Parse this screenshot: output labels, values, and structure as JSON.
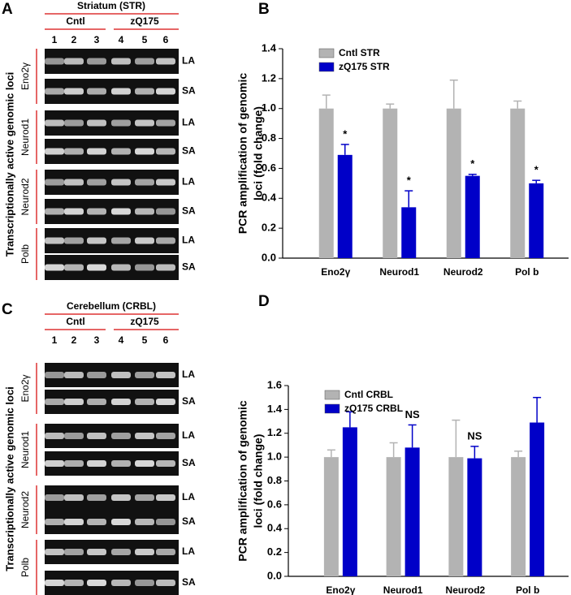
{
  "gels": [
    {
      "letter": "A",
      "title": "Striatum (STR)",
      "groups": [
        "Cntl",
        "zQ175"
      ],
      "lanes": [
        "1",
        "2",
        "3",
        "4",
        "5",
        "6"
      ],
      "side_label": "Transcriptionally active genomic loci",
      "genes": [
        {
          "name": "Eno2γ",
          "rows": [
            "LA",
            "SA"
          ]
        },
        {
          "name": "Neurod1",
          "rows": [
            "LA",
            "SA"
          ]
        },
        {
          "name": "Neurod2",
          "rows": [
            "LA",
            "SA"
          ]
        },
        {
          "name": "Polb",
          "rows": [
            "LA",
            "SA"
          ]
        }
      ]
    },
    {
      "letter": "C",
      "title": "Cerebellum (CRBL)",
      "groups": [
        "Cntl",
        "zQ175"
      ],
      "lanes": [
        "1",
        "2",
        "3",
        "4",
        "5",
        "6"
      ],
      "side_label": "Transcriptionally active genomic loci",
      "genes": [
        {
          "name": "Eno2γ",
          "rows": [
            "LA",
            "SA"
          ]
        },
        {
          "name": "Neurod1",
          "rows": [
            "LA",
            "SA"
          ]
        },
        {
          "name": "Neurod2",
          "rows": [
            "LA",
            "SA"
          ]
        },
        {
          "name": "Polb",
          "rows": [
            "LA",
            "SA"
          ]
        }
      ]
    }
  ],
  "chart_data": [
    {
      "type": "bar",
      "letter": "B",
      "ylabel": [
        "PCR amplification of genomic",
        "loci (fold change)"
      ],
      "categories": [
        "Eno2γ",
        "Neurod1",
        "Neurod2",
        "Pol b"
      ],
      "series": [
        {
          "name": "Cntl STR",
          "color": "#b3b3b3",
          "values": [
            1.0,
            1.0,
            1.0,
            1.0
          ],
          "errors": [
            0.09,
            0.03,
            0.19,
            0.05
          ]
        },
        {
          "name": "zQ175 STR",
          "color": "#0000c8",
          "values": [
            0.69,
            0.34,
            0.55,
            0.5
          ],
          "errors": [
            0.07,
            0.11,
            0.01,
            0.02
          ]
        }
      ],
      "annotations": [
        "*",
        "*",
        "*",
        "*"
      ],
      "ylim": [
        0,
        1.4
      ],
      "yticks": [
        {
          "value": 0,
          "label": "0.0"
        },
        {
          "value": 0.2,
          "label": "0.2"
        },
        {
          "value": 0.4,
          "label": "0.4"
        },
        {
          "value": 0.6,
          "label": "0.6"
        },
        {
          "value": 0.8,
          "label": "0.8"
        },
        {
          "value": 1,
          "label": "1.0"
        },
        {
          "value": 1.2,
          "label": "1.2"
        },
        {
          "value": 1.4,
          "label": "1.4"
        }
      ],
      "legend": "upper left"
    },
    {
      "type": "bar",
      "letter": "D",
      "ylabel": [
        "PCR amplification of genomic",
        "loci (fold change)"
      ],
      "categories": [
        "Eno2γ",
        "Neurod1",
        "Neurod2",
        "Pol b"
      ],
      "series": [
        {
          "name": "Cntl CRBL",
          "color": "#b3b3b3",
          "values": [
            1.0,
            1.0,
            1.0,
            1.0
          ],
          "errors": [
            0.06,
            0.12,
            0.31,
            0.05
          ]
        },
        {
          "name": "zQ175 CRBL",
          "color": "#0000c8",
          "values": [
            1.25,
            1.08,
            0.99,
            1.29
          ],
          "errors": [
            0.13,
            0.19,
            0.1,
            0.21
          ]
        }
      ],
      "annotations": [
        null,
        "NS",
        "NS",
        null
      ],
      "ylim": [
        0,
        1.6
      ],
      "yticks": [
        {
          "value": 0,
          "label": "0.0"
        },
        {
          "value": 0.2,
          "label": "0.2"
        },
        {
          "value": 0.4,
          "label": "0.4"
        },
        {
          "value": 0.6,
          "label": "0.6"
        },
        {
          "value": 0.8,
          "label": "0.8"
        },
        {
          "value": 1,
          "label": "1.0"
        },
        {
          "value": 1.2,
          "label": "1.2"
        },
        {
          "value": 1.4,
          "label": "1.4"
        },
        {
          "value": 1.6,
          "label": "1.6"
        }
      ],
      "legend": "upper left"
    }
  ]
}
